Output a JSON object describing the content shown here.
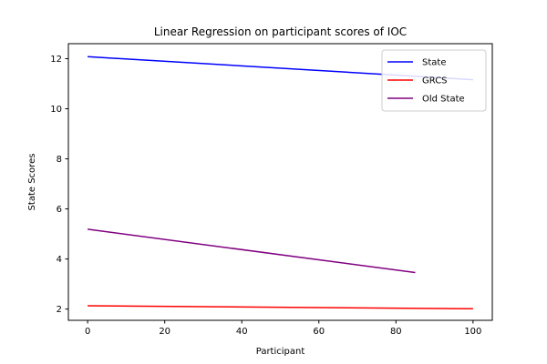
{
  "chart_data": {
    "type": "line",
    "title": "Linear Regression on participant scores of IOC",
    "xlabel": "Participant",
    "ylabel": "State Scores",
    "xlim": [
      -5,
      105
    ],
    "ylim": [
      1.55,
      12.6
    ],
    "xticks": [
      0,
      20,
      40,
      60,
      80,
      100
    ],
    "yticks": [
      2,
      4,
      6,
      8,
      10,
      12
    ],
    "grid": false,
    "legend_position": "top-right",
    "series": [
      {
        "name": "State",
        "color": "#0000ff",
        "x": [
          0,
          100
        ],
        "y": [
          12.08,
          11.16
        ]
      },
      {
        "name": "GRCS",
        "color": "#ff0000",
        "x": [
          0,
          100
        ],
        "y": [
          2.13,
          2.01
        ]
      },
      {
        "name": "Old State",
        "color": "#800080",
        "x": [
          0,
          85
        ],
        "y": [
          5.19,
          3.46
        ]
      }
    ]
  }
}
